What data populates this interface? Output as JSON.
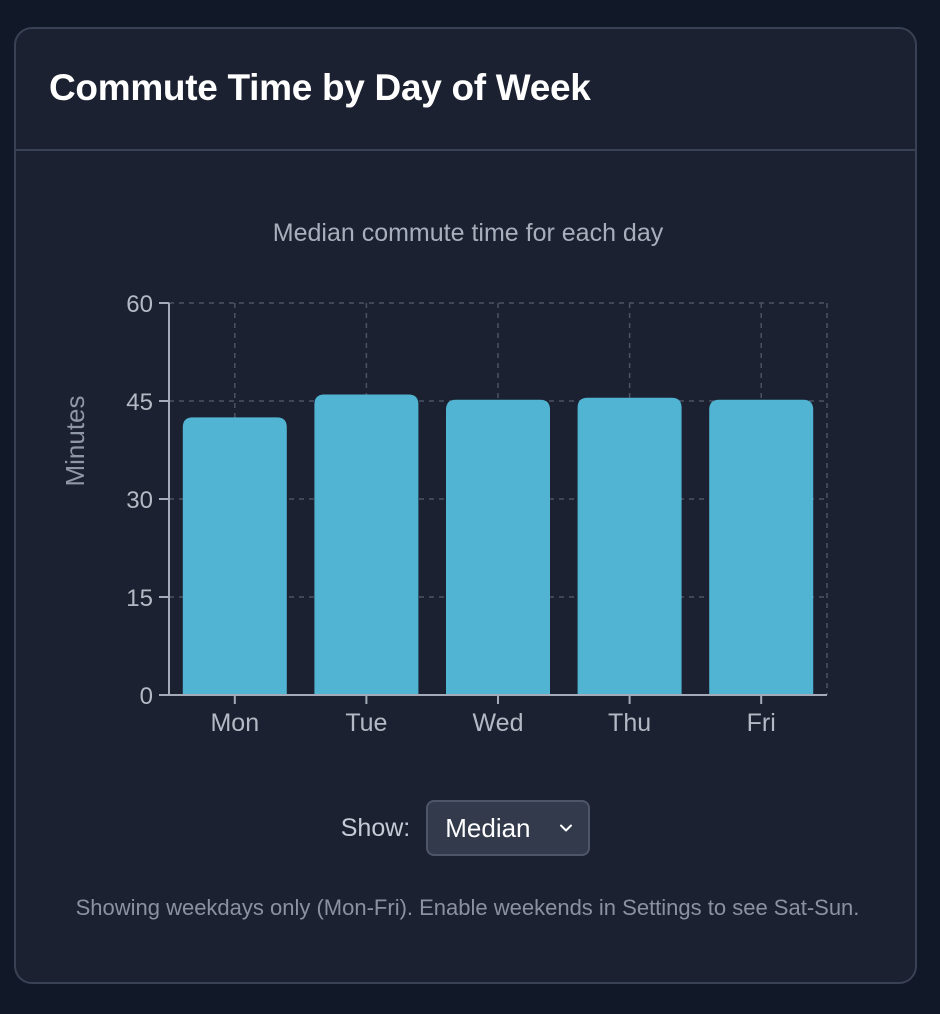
{
  "title": "Commute Time by Day of Week",
  "chart_data": {
    "type": "bar",
    "title": "Median commute time for each day",
    "xlabel": "",
    "ylabel": "Minutes",
    "categories": [
      "Mon",
      "Tue",
      "Wed",
      "Thu",
      "Fri"
    ],
    "values": [
      42.5,
      46,
      45.2,
      45.5,
      45.2
    ],
    "ylim": [
      0,
      60
    ],
    "yticks": [
      0,
      15,
      30,
      45,
      60
    ],
    "grid": true,
    "bar_color": "#52b4d3"
  },
  "controls": {
    "show_label": "Show:",
    "select_value": "Median"
  },
  "footnote": "Showing weekdays only (Mon-Fri). Enable weekends in Settings to see Sat-Sun."
}
